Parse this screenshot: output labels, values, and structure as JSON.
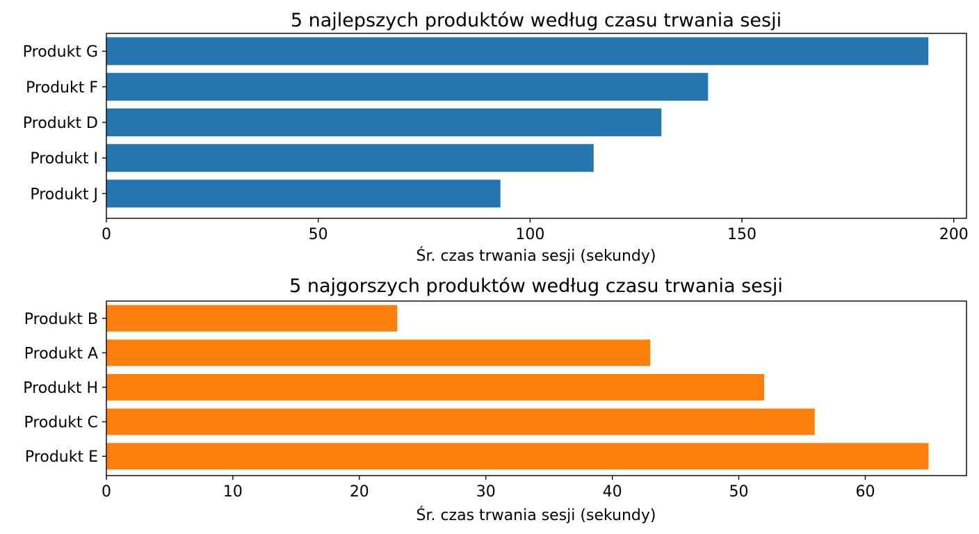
{
  "chart_data": [
    {
      "type": "bar",
      "orientation": "horizontal",
      "title": "5 najlepszych produktów według czasu trwania sesji",
      "xlabel": "Śr. czas trwania sesji (sekundy)",
      "ylabel": "",
      "categories": [
        "Produkt G",
        "Produkt F",
        "Produkt D",
        "Produkt I",
        "Produkt J"
      ],
      "values": [
        194,
        142,
        131,
        115,
        93
      ],
      "xlim": [
        0,
        203
      ],
      "xticks": [
        0,
        50,
        100,
        150,
        200
      ],
      "color": "#2475b0",
      "grid": false
    },
    {
      "type": "bar",
      "orientation": "horizontal",
      "title": "5 najgorszych produktów według czasu trwania sesji",
      "xlabel": "Śr. czas trwania sesji (sekundy)",
      "ylabel": "",
      "categories": [
        "Produkt B",
        "Produkt A",
        "Produkt H",
        "Produkt C",
        "Produkt E"
      ],
      "values": [
        23,
        43,
        52,
        56,
        65
      ],
      "xlim": [
        0,
        68
      ],
      "xticks": [
        0,
        10,
        20,
        30,
        40,
        50,
        60
      ],
      "color": "#ff7f0e",
      "grid": false
    }
  ]
}
